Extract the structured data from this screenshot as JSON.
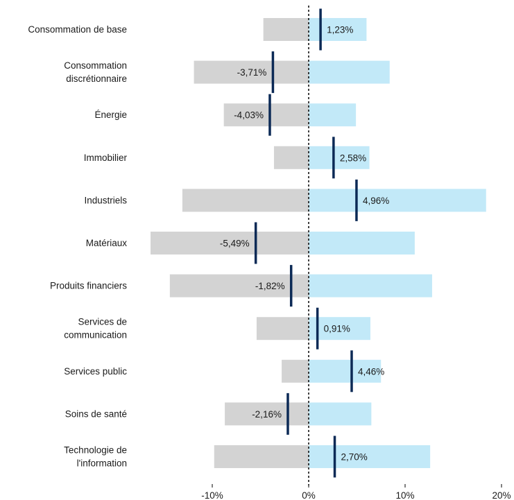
{
  "chart_data": {
    "type": "bar",
    "orientation": "horizontal",
    "categories": [
      [
        "Consommation de base"
      ],
      [
        "Consommation",
        "discrétionnaire"
      ],
      [
        "Énergie"
      ],
      [
        "Immobilier"
      ],
      [
        "Industriels"
      ],
      [
        "Matériaux"
      ],
      [
        "Produits financiers"
      ],
      [
        "Services de",
        "communication"
      ],
      [
        "Services public"
      ],
      [
        "Soins de santé"
      ],
      [
        "Technologie de",
        "l'information"
      ]
    ],
    "series": [
      {
        "role": "range_low",
        "color": "#d3d3d3",
        "values": [
          -4.7,
          -11.9,
          -8.8,
          -3.6,
          -13.1,
          -16.4,
          -14.4,
          -5.4,
          -2.8,
          -8.7,
          -9.8
        ]
      },
      {
        "role": "range_high",
        "color": "#c2e9f8",
        "values": [
          6.0,
          8.4,
          4.9,
          6.3,
          18.4,
          11.0,
          12.8,
          6.4,
          7.5,
          6.5,
          12.6
        ]
      },
      {
        "role": "marker",
        "color": "#0c2a56",
        "values": [
          1.23,
          -3.71,
          -4.03,
          2.58,
          4.96,
          -5.49,
          -1.82,
          0.91,
          4.46,
          -2.16,
          2.7
        ],
        "labels": [
          "1,23%",
          "-3,71%",
          "-4,03%",
          "2,58%",
          "4,96%",
          "-5,49%",
          "-1,82%",
          "0,91%",
          "4,46%",
          "-2,16%",
          "2,70%"
        ]
      }
    ],
    "xaxis": {
      "ticks": [
        -10,
        0,
        10,
        20
      ],
      "tick_labels": [
        "-10%",
        "0%",
        "10%",
        "20%"
      ],
      "xlim": [
        -16.6,
        20
      ]
    },
    "zero_line": "dashed",
    "grid": false,
    "legend": "none"
  }
}
